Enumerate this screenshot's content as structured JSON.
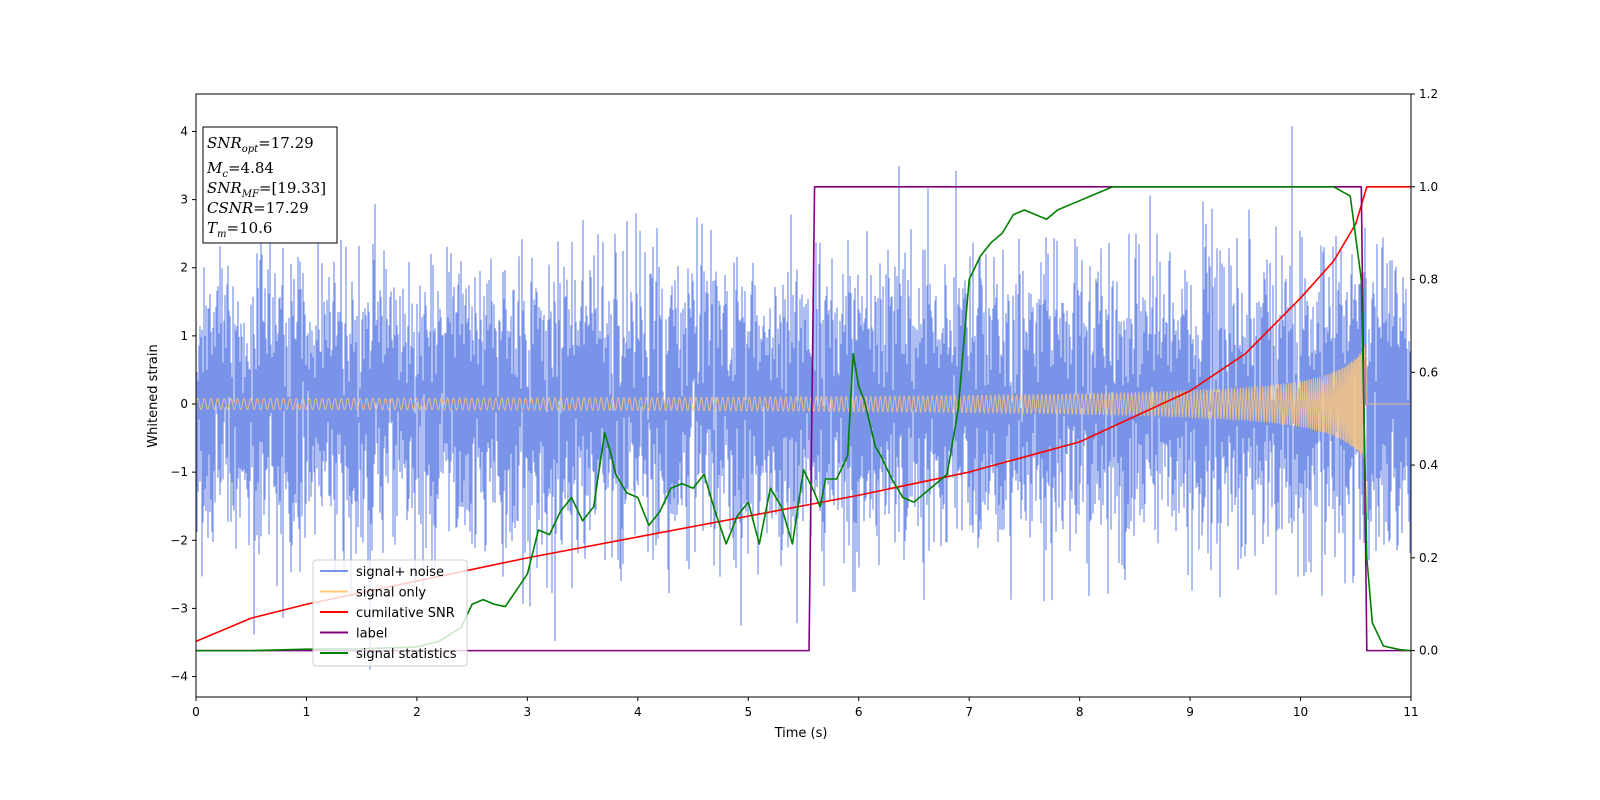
{
  "chart_data": {
    "type": "line",
    "xlabel": "Time (s)",
    "ylabel": "Whitened strain",
    "xlim": [
      0,
      11
    ],
    "ylim": [
      -4.3,
      4.55
    ],
    "y2lim": [
      -0.1,
      1.2
    ],
    "x_ticks": [
      "0",
      "1",
      "2",
      "3",
      "4",
      "5",
      "6",
      "7",
      "8",
      "9",
      "10",
      "11"
    ],
    "y_ticks": [
      "−4",
      "−3",
      "−2",
      "−1",
      "0",
      "1",
      "2",
      "3",
      "4"
    ],
    "y2_ticks": [
      "0.0",
      "0.2",
      "0.4",
      "0.6",
      "0.8",
      "1.0",
      "1.2"
    ],
    "legend_position": "lower-left",
    "annotation": [
      {
        "sym": "SNR",
        "sub": "opt",
        "rest": "=17.29"
      },
      {
        "sym": "M",
        "sub": "c",
        "rest": "=4.84"
      },
      {
        "sym": "SNR",
        "sub": "MF",
        "rest": "=[19.33]"
      },
      {
        "sym": "CSNR",
        "sub": "",
        "rest": "=17.29"
      },
      {
        "sym": "T",
        "sub": "m",
        "rest": "=10.6"
      }
    ],
    "series": [
      {
        "name": "signal+ noise",
        "color": "#7893e8",
        "axis": "left",
        "description_values": {
          "noise_std": 1.0,
          "t_end": 11.0
        }
      },
      {
        "name": "signal only",
        "color": "#ffc87a",
        "axis": "left",
        "envelope": {
          "t_start": 0,
          "t_merge": 10.6,
          "amp_start": 0.08,
          "amp_peak": 0.9
        }
      },
      {
        "name": "cumilative SNR",
        "color": "#ff0000",
        "axis": "right",
        "x": [
          0,
          0.5,
          1,
          2,
          3,
          4,
          5,
          6,
          7,
          8,
          9,
          9.5,
          10,
          10.3,
          10.5,
          10.6,
          10.7,
          11
        ],
        "y": [
          0.02,
          0.07,
          0.1,
          0.15,
          0.2,
          0.245,
          0.29,
          0.335,
          0.385,
          0.45,
          0.56,
          0.64,
          0.76,
          0.84,
          0.92,
          1.0,
          1.0,
          1.0
        ]
      },
      {
        "name": "label",
        "color": "#800080",
        "axis": "right",
        "x": [
          0,
          5.55,
          5.6,
          10.55,
          10.6,
          11
        ],
        "y": [
          0,
          0,
          1,
          1,
          0,
          0
        ]
      },
      {
        "name": "signal statistics",
        "color": "#008000",
        "axis": "right",
        "x": [
          0,
          0.5,
          1,
          1.5,
          2,
          2.2,
          2.4,
          2.5,
          2.6,
          2.7,
          2.8,
          2.9,
          3.0,
          3.1,
          3.2,
          3.3,
          3.4,
          3.5,
          3.6,
          3.7,
          3.75,
          3.8,
          3.9,
          4.0,
          4.1,
          4.2,
          4.3,
          4.4,
          4.5,
          4.6,
          4.7,
          4.8,
          4.9,
          5.0,
          5.1,
          5.2,
          5.3,
          5.4,
          5.5,
          5.6,
          5.65,
          5.7,
          5.8,
          5.9,
          5.95,
          6.0,
          6.05,
          6.15,
          6.2,
          6.3,
          6.4,
          6.5,
          6.6,
          6.7,
          6.8,
          6.9,
          7.0,
          7.1,
          7.2,
          7.3,
          7.4,
          7.5,
          7.6,
          7.7,
          7.8,
          7.9,
          8.0,
          8.1,
          8.2,
          8.3,
          8.4,
          8.5,
          8.8,
          9.0,
          9.5,
          10.0,
          10.3,
          10.45,
          10.55,
          10.6,
          10.65,
          10.75,
          10.9,
          11.0
        ],
        "y": [
          0,
          0,
          0.003,
          0.004,
          0.008,
          0.02,
          0.05,
          0.1,
          0.11,
          0.1,
          0.095,
          0.13,
          0.165,
          0.26,
          0.25,
          0.3,
          0.33,
          0.28,
          0.31,
          0.47,
          0.43,
          0.38,
          0.34,
          0.33,
          0.27,
          0.3,
          0.35,
          0.36,
          0.35,
          0.38,
          0.3,
          0.23,
          0.29,
          0.32,
          0.23,
          0.35,
          0.31,
          0.23,
          0.39,
          0.34,
          0.31,
          0.37,
          0.37,
          0.42,
          0.64,
          0.57,
          0.54,
          0.44,
          0.42,
          0.37,
          0.33,
          0.32,
          0.34,
          0.36,
          0.38,
          0.52,
          0.8,
          0.85,
          0.88,
          0.9,
          0.94,
          0.95,
          0.94,
          0.93,
          0.95,
          0.96,
          0.97,
          0.98,
          0.99,
          1.0,
          1.0,
          1.0,
          1.0,
          1.0,
          1.0,
          1.0,
          1.0,
          0.98,
          0.8,
          0.2,
          0.06,
          0.01,
          0.002,
          0
        ]
      }
    ]
  }
}
